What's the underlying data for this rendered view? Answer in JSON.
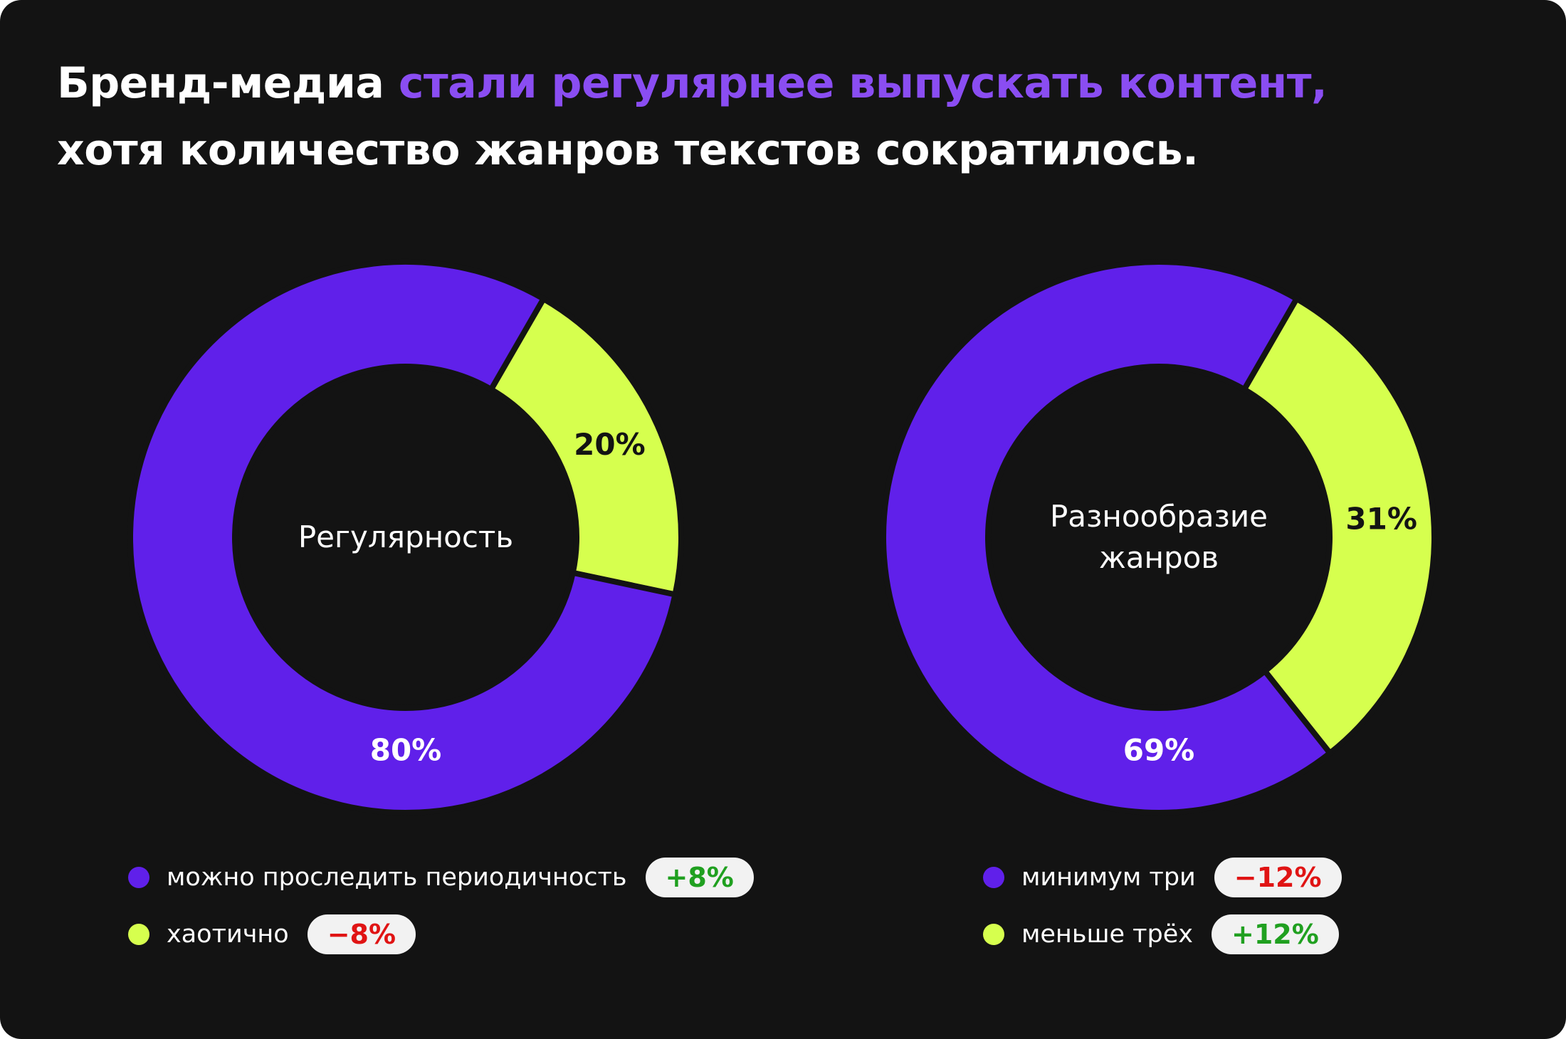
{
  "title": {
    "part1": "Бренд-медиа ",
    "accent": "стали регулярнее выпускать контент,",
    "line2": "хотя количество жанров текстов сократилось."
  },
  "colors": {
    "purple": "#6020ea",
    "lime": "#d6ff4e",
    "background": "#131313",
    "accent_text": "#8a4df2",
    "positive": "#20a020",
    "negative": "#e01414"
  },
  "chart_data": [
    {
      "type": "pie",
      "center_label": [
        "Регулярность"
      ],
      "categories": [
        "можно проследить периодичность",
        "хаотично"
      ],
      "values": [
        80,
        20
      ],
      "value_labels": [
        "80%",
        "20%"
      ],
      "colors": [
        "#6020ea",
        "#d6ff4e"
      ],
      "changes": [
        "+8%",
        "−8%"
      ],
      "change_signs": [
        "positive",
        "negative"
      ]
    },
    {
      "type": "pie",
      "center_label": [
        "Разнообразие",
        "жанров"
      ],
      "categories": [
        "минимум три",
        "меньше трёх"
      ],
      "values": [
        69,
        31
      ],
      "value_labels": [
        "69%",
        "31%"
      ],
      "colors": [
        "#6020ea",
        "#d6ff4e"
      ],
      "changes": [
        "−12%",
        "+12%"
      ],
      "change_signs": [
        "negative",
        "positive"
      ]
    }
  ]
}
